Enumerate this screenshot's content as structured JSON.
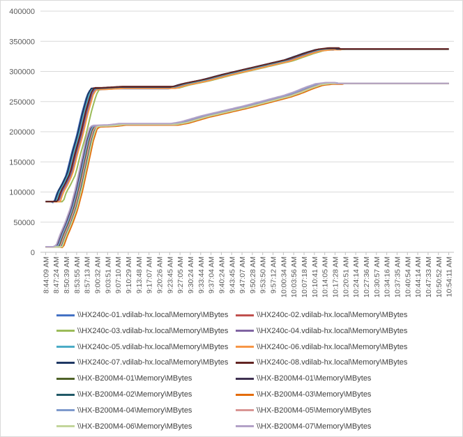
{
  "chart_data": {
    "type": "line",
    "title": "",
    "xlabel": "",
    "ylabel": "",
    "ylim": [
      0,
      400000
    ],
    "y_ticks": [
      "0",
      "50000",
      "100000",
      "150000",
      "200000",
      "250000",
      "300000",
      "350000",
      "400000"
    ],
    "x_ticks": [
      "8:44:09 AM",
      "8:47:24 AM",
      "8:50:39 AM",
      "8:53:55 AM",
      "8:57:13 AM",
      "9:00:32 AM",
      "9:03:51 AM",
      "9:07:10 AM",
      "9:10:29 AM",
      "9:13:48 AM",
      "9:17:07 AM",
      "9:20:26 AM",
      "9:23:45 AM",
      "9:27:05 AM",
      "9:30:24 AM",
      "9:33:44 AM",
      "9:37:04 AM",
      "9:40:24 AM",
      "9:43:45 AM",
      "9:47:07 AM",
      "9:50:28 AM",
      "9:53:50 AM",
      "9:57:12 AM",
      "10:00:34 AM",
      "10:03:56 AM",
      "10:07:18 AM",
      "10:10:41 AM",
      "10:14:05 AM",
      "10:17:28 AM",
      "10:20:51 AM",
      "10:24:14 AM",
      "10:27:36 AM",
      "10:30:57 AM",
      "10:34:16 AM",
      "10:37:35 AM",
      "10:40:54 AM",
      "10:44:14 AM",
      "10:47:33 AM",
      "10:50:52 AM",
      "10:54:11 AM"
    ],
    "grid": true,
    "legend_position": "bottom",
    "series": [
      {
        "name": "\\\\HX240c-01.vdilab-hx.local\\Memory\\MBytes",
        "color": "#4472C4",
        "group": "HX240c",
        "offset": -1500,
        "lag": 0.0
      },
      {
        "name": "\\\\HX240c-02.vdilab-hx.local\\Memory\\MBytes",
        "color": "#C0504D",
        "group": "HX240c",
        "offset": 1500,
        "lag": 0.3
      },
      {
        "name": "\\\\HX240c-03.vdilab-hx.local\\Memory\\MBytes",
        "color": "#9BBB59",
        "group": "HX240c",
        "offset": -500,
        "lag": 0.9
      },
      {
        "name": "\\\\HX240c-04.vdilab-hx.local\\Memory\\MBytes",
        "color": "#8064A2",
        "group": "HX240c",
        "offset": 500,
        "lag": 0.5
      },
      {
        "name": "\\\\HX240c-05.vdilab-hx.local\\Memory\\MBytes",
        "color": "#4BACC6",
        "group": "HX240c",
        "offset": 0,
        "lag": 0.2
      },
      {
        "name": "\\\\HX240c-06.vdilab-hx.local\\Memory\\MBytes",
        "color": "#F79646",
        "group": "HX240c",
        "offset": -1000,
        "lag": 0.6
      },
      {
        "name": "\\\\HX240c-07.vdilab-hx.local\\Memory\\MBytes",
        "color": "#1F3864",
        "group": "HX240c",
        "offset": 1000,
        "lag": 0.1
      },
      {
        "name": "\\\\HX240c-08.vdilab-hx.local\\Memory\\MBytes",
        "color": "#632523",
        "group": "HX240c",
        "offset": 2000,
        "lag": 0.4
      },
      {
        "name": "\\\\HX-B200M4-01\\Memory\\MBytes",
        "color": "#4F6228",
        "group": "B200",
        "offset": -500,
        "lag": 0.4
      },
      {
        "name": "\\\\HX-B200M4-01\\Memory\\MBytes",
        "color": "#3F3151",
        "group": "B200",
        "offset": 500,
        "lag": 0.2
      },
      {
        "name": "\\\\HX-B200M4-02\\Memory\\MBytes",
        "color": "#215967",
        "group": "B200",
        "offset": 0,
        "lag": 0.6
      },
      {
        "name": "\\\\HX-B200M4-03\\Memory\\MBytes",
        "color": "#E36C09",
        "group": "B200",
        "offset": -1000,
        "lag": 0.8
      },
      {
        "name": "\\\\HX-B200M4-04\\Memory\\MBytes",
        "color": "#7F9ACD",
        "group": "B200",
        "offset": 1000,
        "lag": 0.3
      },
      {
        "name": "\\\\HX-B200M4-05\\Memory\\MBytes",
        "color": "#D99694",
        "group": "B200",
        "offset": -200,
        "lag": 0.5
      },
      {
        "name": "\\\\HX-B200M4-06\\Memory\\MBytes",
        "color": "#C3D69B",
        "group": "B200",
        "offset": 200,
        "lag": 0.7
      },
      {
        "name": "\\\\HX-B200M4-07\\Memory\\MBytes",
        "color": "#B3A2C7",
        "group": "B200",
        "offset": 1500,
        "lag": 0.1
      }
    ],
    "group_profiles": {
      "HX240c": [
        [
          0,
          84000
        ],
        [
          0.5,
          84000
        ],
        [
          0.8,
          84000
        ],
        [
          1.1,
          100000
        ],
        [
          1.5,
          112000
        ],
        [
          2.0,
          130000
        ],
        [
          2.5,
          165000
        ],
        [
          3.0,
          195000
        ],
        [
          3.5,
          232000
        ],
        [
          4.0,
          262000
        ],
        [
          4.3,
          271000
        ],
        [
          5,
          271000
        ],
        [
          6,
          272000
        ],
        [
          7,
          273000
        ],
        [
          9,
          273000
        ],
        [
          11,
          273000
        ],
        [
          12,
          273000
        ],
        [
          13,
          278000
        ],
        [
          15,
          285000
        ],
        [
          17,
          294000
        ],
        [
          19,
          302000
        ],
        [
          21,
          310000
        ],
        [
          23,
          318000
        ],
        [
          24,
          324000
        ],
        [
          25,
          330000
        ],
        [
          26,
          335000
        ],
        [
          27,
          337000
        ],
        [
          28,
          337000
        ],
        [
          39,
          337000
        ]
      ],
      "B200": [
        [
          0,
          9000
        ],
        [
          0.6,
          9000
        ],
        [
          0.9,
          9000
        ],
        [
          1.3,
          28000
        ],
        [
          1.8,
          48000
        ],
        [
          2.3,
          72000
        ],
        [
          2.8,
          105000
        ],
        [
          3.3,
          145000
        ],
        [
          3.8,
          185000
        ],
        [
          4.2,
          207000
        ],
        [
          4.5,
          209000
        ],
        [
          6,
          210000
        ],
        [
          7,
          212000
        ],
        [
          10,
          212000
        ],
        [
          12,
          212000
        ],
        [
          13,
          215000
        ],
        [
          15,
          225000
        ],
        [
          17,
          233000
        ],
        [
          19,
          241000
        ],
        [
          21,
          250000
        ],
        [
          23,
          259000
        ],
        [
          24,
          265000
        ],
        [
          25,
          272000
        ],
        [
          26,
          278000
        ],
        [
          27,
          280000
        ],
        [
          28,
          280000
        ],
        [
          39,
          280000
        ]
      ]
    }
  }
}
